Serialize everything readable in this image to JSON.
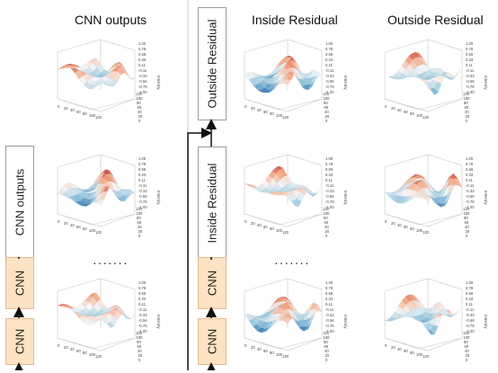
{
  "headers": {
    "cnn_outputs": "CNN outputs",
    "inside_residual": "Inside Residual",
    "outside_residual": "Outside Residual"
  },
  "flow_boxes": {
    "cnn_outputs": "CNN outputs",
    "cnn_1": "CNN",
    "cnn_2": "CNN",
    "inside_residual": "Inside Residual",
    "outside_residual": "Outside Residual",
    "cnn_3": "CNN",
    "cnn_4": "CNN"
  },
  "ellipsis": "·······",
  "colorbar_ticks": [
    "1.00",
    "0.78",
    "0.56",
    "0.33",
    "0.11",
    "-0.11",
    "-0.33",
    "-0.56",
    "-0.78",
    "-1.00"
  ],
  "colorbar_label": "Intensity",
  "axis_ticks_x": [
    "0",
    "20",
    "40",
    "60",
    "80",
    "100",
    "120"
  ],
  "axis_ticks_y": [
    "0",
    "20",
    "40",
    "60",
    "80",
    "100",
    "120"
  ],
  "colors": {
    "cnn_box_fill": "#fbe3c4",
    "cnn_box_border": "#e6b98a",
    "surface_high": "#b2182b",
    "surface_low": "#2166ac"
  }
}
